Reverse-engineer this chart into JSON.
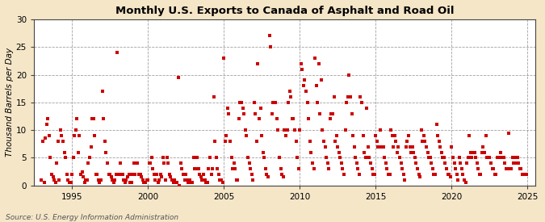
{
  "title": "Monthly U.S. Exports to Canada of Asphalt and Road Oil",
  "ylabel": "Thousand Barrels per Day",
  "source": "Source: U.S. Energy Information Administration",
  "bg_color": "#f5e6c8",
  "plot_bg_color": "#ffffff",
  "dot_color": "#cc0000",
  "dot_size": 5,
  "xlim": [
    1992.5,
    2025.5
  ],
  "ylim": [
    0,
    30
  ],
  "yticks": [
    0,
    5,
    10,
    15,
    20,
    25,
    30
  ],
  "xticks": [
    1995,
    2000,
    2005,
    2010,
    2015,
    2020,
    2025
  ],
  "data": [
    [
      1993.0,
      1.0
    ],
    [
      1993.08,
      8.0
    ],
    [
      1993.17,
      0.5
    ],
    [
      1993.25,
      8.5
    ],
    [
      1993.33,
      11.0
    ],
    [
      1993.42,
      12.0
    ],
    [
      1993.5,
      9.0
    ],
    [
      1993.58,
      5.0
    ],
    [
      1993.67,
      2.0
    ],
    [
      1993.75,
      1.5
    ],
    [
      1993.83,
      1.0
    ],
    [
      1993.92,
      0.5
    ],
    [
      1994.0,
      4.0
    ],
    [
      1994.08,
      8.0
    ],
    [
      1994.17,
      1.0
    ],
    [
      1994.25,
      10.0
    ],
    [
      1994.33,
      9.0
    ],
    [
      1994.42,
      8.0
    ],
    [
      1994.5,
      6.0
    ],
    [
      1994.58,
      5.0
    ],
    [
      1994.67,
      2.0
    ],
    [
      1994.75,
      1.0
    ],
    [
      1994.83,
      0.5
    ],
    [
      1994.92,
      0.5
    ],
    [
      1995.0,
      2.0
    ],
    [
      1995.08,
      5.0
    ],
    [
      1995.17,
      9.0
    ],
    [
      1995.25,
      10.0
    ],
    [
      1995.33,
      12.0
    ],
    [
      1995.42,
      6.0
    ],
    [
      1995.5,
      9.0
    ],
    [
      1995.58,
      2.0
    ],
    [
      1995.67,
      2.5
    ],
    [
      1995.75,
      1.5
    ],
    [
      1995.83,
      0.5
    ],
    [
      1995.92,
      1.0
    ],
    [
      1996.0,
      1.0
    ],
    [
      1996.08,
      4.0
    ],
    [
      1996.17,
      5.0
    ],
    [
      1996.25,
      7.0
    ],
    [
      1996.33,
      12.0
    ],
    [
      1996.42,
      12.0
    ],
    [
      1996.5,
      9.0
    ],
    [
      1996.58,
      2.0
    ],
    [
      1996.67,
      2.0
    ],
    [
      1996.75,
      1.0
    ],
    [
      1996.83,
      0.5
    ],
    [
      1996.92,
      1.0
    ],
    [
      1997.0,
      17.0
    ],
    [
      1997.08,
      12.0
    ],
    [
      1997.17,
      8.0
    ],
    [
      1997.25,
      6.0
    ],
    [
      1997.33,
      4.0
    ],
    [
      1997.42,
      2.0
    ],
    [
      1997.5,
      2.0
    ],
    [
      1997.58,
      1.5
    ],
    [
      1997.67,
      1.0
    ],
    [
      1997.75,
      0.5
    ],
    [
      1997.83,
      1.0
    ],
    [
      1997.92,
      2.0
    ],
    [
      1998.0,
      24.0
    ],
    [
      1998.08,
      2.0
    ],
    [
      1998.17,
      4.0
    ],
    [
      1998.25,
      2.0
    ],
    [
      1998.33,
      2.0
    ],
    [
      1998.42,
      1.0
    ],
    [
      1998.5,
      0.5
    ],
    [
      1998.58,
      1.0
    ],
    [
      1998.67,
      1.5
    ],
    [
      1998.75,
      2.0
    ],
    [
      1998.83,
      0.5
    ],
    [
      1998.92,
      0.5
    ],
    [
      1999.0,
      2.0
    ],
    [
      1999.08,
      4.0
    ],
    [
      1999.17,
      2.0
    ],
    [
      1999.25,
      4.0
    ],
    [
      1999.33,
      4.0
    ],
    [
      1999.42,
      2.0
    ],
    [
      1999.5,
      2.0
    ],
    [
      1999.58,
      1.5
    ],
    [
      1999.67,
      1.0
    ],
    [
      1999.75,
      0.5
    ],
    [
      1999.83,
      0.5
    ],
    [
      1999.92,
      1.0
    ],
    [
      2000.0,
      1.0
    ],
    [
      2000.08,
      4.0
    ],
    [
      2000.17,
      4.0
    ],
    [
      2000.25,
      5.0
    ],
    [
      2000.33,
      3.0
    ],
    [
      2000.42,
      2.0
    ],
    [
      2000.5,
      1.0
    ],
    [
      2000.58,
      2.0
    ],
    [
      2000.67,
      0.5
    ],
    [
      2000.75,
      1.0
    ],
    [
      2000.83,
      2.0
    ],
    [
      2000.92,
      1.5
    ],
    [
      2001.0,
      5.0
    ],
    [
      2001.08,
      4.0
    ],
    [
      2001.17,
      1.0
    ],
    [
      2001.25,
      5.0
    ],
    [
      2001.33,
      4.0
    ],
    [
      2001.42,
      2.0
    ],
    [
      2001.5,
      1.5
    ],
    [
      2001.58,
      1.0
    ],
    [
      2001.67,
      0.5
    ],
    [
      2001.75,
      1.0
    ],
    [
      2001.83,
      0.5
    ],
    [
      2001.92,
      0.5
    ],
    [
      2002.0,
      19.5
    ],
    [
      2002.08,
      0.0
    ],
    [
      2002.17,
      4.0
    ],
    [
      2002.25,
      3.0
    ],
    [
      2002.33,
      2.0
    ],
    [
      2002.42,
      1.0
    ],
    [
      2002.5,
      2.0
    ],
    [
      2002.58,
      1.0
    ],
    [
      2002.67,
      0.5
    ],
    [
      2002.75,
      1.0
    ],
    [
      2002.83,
      0.5
    ],
    [
      2002.92,
      0.5
    ],
    [
      2003.0,
      5.0
    ],
    [
      2003.08,
      3.0
    ],
    [
      2003.17,
      3.0
    ],
    [
      2003.25,
      5.0
    ],
    [
      2003.33,
      3.0
    ],
    [
      2003.42,
      2.0
    ],
    [
      2003.5,
      1.5
    ],
    [
      2003.58,
      1.0
    ],
    [
      2003.67,
      2.0
    ],
    [
      2003.75,
      1.0
    ],
    [
      2003.83,
      0.5
    ],
    [
      2003.92,
      0.5
    ],
    [
      2004.0,
      3.0
    ],
    [
      2004.08,
      5.0
    ],
    [
      2004.17,
      2.0
    ],
    [
      2004.25,
      3.0
    ],
    [
      2004.33,
      16.0
    ],
    [
      2004.42,
      8.0
    ],
    [
      2004.5,
      5.0
    ],
    [
      2004.58,
      3.0
    ],
    [
      2004.67,
      2.0
    ],
    [
      2004.75,
      1.0
    ],
    [
      2004.83,
      1.0
    ],
    [
      2004.92,
      0.5
    ],
    [
      2005.0,
      23.0
    ],
    [
      2005.08,
      8.0
    ],
    [
      2005.17,
      9.0
    ],
    [
      2005.25,
      14.0
    ],
    [
      2005.33,
      13.0
    ],
    [
      2005.42,
      8.0
    ],
    [
      2005.5,
      5.0
    ],
    [
      2005.58,
      3.0
    ],
    [
      2005.67,
      4.0
    ],
    [
      2005.75,
      3.0
    ],
    [
      2005.83,
      1.0
    ],
    [
      2005.92,
      1.0
    ],
    [
      2006.0,
      12.0
    ],
    [
      2006.08,
      15.0
    ],
    [
      2006.17,
      15.0
    ],
    [
      2006.25,
      14.0
    ],
    [
      2006.33,
      13.0
    ],
    [
      2006.42,
      10.0
    ],
    [
      2006.5,
      9.0
    ],
    [
      2006.58,
      5.0
    ],
    [
      2006.67,
      4.0
    ],
    [
      2006.75,
      3.0
    ],
    [
      2006.83,
      2.0
    ],
    [
      2006.92,
      1.0
    ],
    [
      2007.0,
      15.0
    ],
    [
      2007.08,
      13.0
    ],
    [
      2007.17,
      8.0
    ],
    [
      2007.25,
      22.0
    ],
    [
      2007.33,
      12.0
    ],
    [
      2007.42,
      14.0
    ],
    [
      2007.5,
      9.0
    ],
    [
      2007.58,
      6.0
    ],
    [
      2007.67,
      5.0
    ],
    [
      2007.75,
      3.0
    ],
    [
      2007.83,
      2.0
    ],
    [
      2007.92,
      1.5
    ],
    [
      2008.0,
      27.0
    ],
    [
      2008.08,
      25.0
    ],
    [
      2008.17,
      13.0
    ],
    [
      2008.25,
      15.0
    ],
    [
      2008.33,
      15.0
    ],
    [
      2008.42,
      15.0
    ],
    [
      2008.5,
      12.0
    ],
    [
      2008.58,
      10.0
    ],
    [
      2008.67,
      5.0
    ],
    [
      2008.75,
      3.0
    ],
    [
      2008.83,
      2.0
    ],
    [
      2008.92,
      1.5
    ],
    [
      2009.0,
      10.0
    ],
    [
      2009.08,
      9.0
    ],
    [
      2009.17,
      10.0
    ],
    [
      2009.25,
      15.0
    ],
    [
      2009.33,
      17.0
    ],
    [
      2009.42,
      16.0
    ],
    [
      2009.5,
      12.0
    ],
    [
      2009.58,
      12.0
    ],
    [
      2009.67,
      10.0
    ],
    [
      2009.75,
      8.0
    ],
    [
      2009.83,
      5.0
    ],
    [
      2009.92,
      3.0
    ],
    [
      2010.0,
      10.0
    ],
    [
      2010.08,
      22.0
    ],
    [
      2010.17,
      21.0
    ],
    [
      2010.25,
      18.0
    ],
    [
      2010.33,
      19.0
    ],
    [
      2010.42,
      17.0
    ],
    [
      2010.5,
      15.0
    ],
    [
      2010.58,
      12.0
    ],
    [
      2010.67,
      8.0
    ],
    [
      2010.75,
      6.0
    ],
    [
      2010.83,
      4.0
    ],
    [
      2010.92,
      3.0
    ],
    [
      2011.0,
      23.0
    ],
    [
      2011.08,
      18.0
    ],
    [
      2011.17,
      15.0
    ],
    [
      2011.25,
      22.0
    ],
    [
      2011.33,
      13.0
    ],
    [
      2011.42,
      19.0
    ],
    [
      2011.5,
      10.0
    ],
    [
      2011.58,
      8.0
    ],
    [
      2011.67,
      7.0
    ],
    [
      2011.75,
      5.0
    ],
    [
      2011.83,
      4.0
    ],
    [
      2011.92,
      3.0
    ],
    [
      2012.0,
      12.0
    ],
    [
      2012.08,
      13.0
    ],
    [
      2012.17,
      13.0
    ],
    [
      2012.25,
      16.0
    ],
    [
      2012.33,
      8.0
    ],
    [
      2012.42,
      9.0
    ],
    [
      2012.5,
      7.0
    ],
    [
      2012.58,
      6.0
    ],
    [
      2012.67,
      5.0
    ],
    [
      2012.75,
      4.0
    ],
    [
      2012.83,
      3.0
    ],
    [
      2012.92,
      2.0
    ],
    [
      2013.0,
      10.0
    ],
    [
      2013.08,
      15.0
    ],
    [
      2013.17,
      16.0
    ],
    [
      2013.25,
      20.0
    ],
    [
      2013.33,
      16.0
    ],
    [
      2013.42,
      13.0
    ],
    [
      2013.5,
      9.0
    ],
    [
      2013.58,
      7.0
    ],
    [
      2013.67,
      5.0
    ],
    [
      2013.75,
      4.0
    ],
    [
      2013.83,
      3.0
    ],
    [
      2013.92,
      2.0
    ],
    [
      2014.0,
      16.0
    ],
    [
      2014.08,
      15.0
    ],
    [
      2014.17,
      9.0
    ],
    [
      2014.25,
      6.0
    ],
    [
      2014.33,
      5.0
    ],
    [
      2014.42,
      14.0
    ],
    [
      2014.5,
      7.0
    ],
    [
      2014.58,
      5.0
    ],
    [
      2014.67,
      4.0
    ],
    [
      2014.75,
      3.0
    ],
    [
      2014.83,
      2.0
    ],
    [
      2014.92,
      2.0
    ],
    [
      2015.0,
      9.0
    ],
    [
      2015.08,
      8.0
    ],
    [
      2015.17,
      7.0
    ],
    [
      2015.25,
      7.0
    ],
    [
      2015.33,
      10.0
    ],
    [
      2015.42,
      7.0
    ],
    [
      2015.5,
      7.0
    ],
    [
      2015.58,
      5.0
    ],
    [
      2015.67,
      4.0
    ],
    [
      2015.75,
      3.0
    ],
    [
      2015.83,
      2.0
    ],
    [
      2015.92,
      2.0
    ],
    [
      2016.0,
      10.0
    ],
    [
      2016.08,
      9.0
    ],
    [
      2016.17,
      7.0
    ],
    [
      2016.25,
      9.0
    ],
    [
      2016.33,
      8.0
    ],
    [
      2016.42,
      6.0
    ],
    [
      2016.5,
      7.0
    ],
    [
      2016.58,
      5.0
    ],
    [
      2016.67,
      4.0
    ],
    [
      2016.75,
      3.0
    ],
    [
      2016.83,
      2.0
    ],
    [
      2016.92,
      1.0
    ],
    [
      2017.0,
      7.0
    ],
    [
      2017.08,
      8.0
    ],
    [
      2017.17,
      9.0
    ],
    [
      2017.25,
      7.0
    ],
    [
      2017.33,
      6.0
    ],
    [
      2017.42,
      7.0
    ],
    [
      2017.5,
      6.0
    ],
    [
      2017.58,
      5.0
    ],
    [
      2017.67,
      4.0
    ],
    [
      2017.75,
      3.0
    ],
    [
      2017.83,
      2.0
    ],
    [
      2017.92,
      1.5
    ],
    [
      2018.0,
      10.0
    ],
    [
      2018.08,
      8.0
    ],
    [
      2018.17,
      9.0
    ],
    [
      2018.25,
      8.0
    ],
    [
      2018.33,
      7.0
    ],
    [
      2018.42,
      6.0
    ],
    [
      2018.5,
      5.0
    ],
    [
      2018.58,
      5.0
    ],
    [
      2018.67,
      4.0
    ],
    [
      2018.75,
      3.0
    ],
    [
      2018.83,
      2.0
    ],
    [
      2018.92,
      2.0
    ],
    [
      2019.0,
      11.0
    ],
    [
      2019.08,
      9.0
    ],
    [
      2019.17,
      8.0
    ],
    [
      2019.25,
      7.0
    ],
    [
      2019.33,
      6.0
    ],
    [
      2019.42,
      5.0
    ],
    [
      2019.5,
      5.0
    ],
    [
      2019.58,
      4.0
    ],
    [
      2019.67,
      3.0
    ],
    [
      2019.75,
      2.0
    ],
    [
      2019.83,
      2.0
    ],
    [
      2019.92,
      1.5
    ],
    [
      2020.0,
      7.0
    ],
    [
      2020.08,
      5.0
    ],
    [
      2020.17,
      4.0
    ],
    [
      2020.25,
      3.0
    ],
    [
      2020.33,
      2.0
    ],
    [
      2020.42,
      1.0
    ],
    [
      2020.5,
      5.0
    ],
    [
      2020.58,
      4.0
    ],
    [
      2020.67,
      3.0
    ],
    [
      2020.75,
      2.0
    ],
    [
      2020.83,
      1.0
    ],
    [
      2020.92,
      0.5
    ],
    [
      2021.0,
      4.0
    ],
    [
      2021.08,
      5.0
    ],
    [
      2021.17,
      9.0
    ],
    [
      2021.25,
      6.0
    ],
    [
      2021.33,
      5.0
    ],
    [
      2021.42,
      6.0
    ],
    [
      2021.5,
      6.0
    ],
    [
      2021.58,
      5.0
    ],
    [
      2021.67,
      4.0
    ],
    [
      2021.75,
      3.0
    ],
    [
      2021.83,
      2.0
    ],
    [
      2021.92,
      2.0
    ],
    [
      2022.0,
      6.0
    ],
    [
      2022.08,
      7.0
    ],
    [
      2022.17,
      6.0
    ],
    [
      2022.25,
      9.0
    ],
    [
      2022.33,
      5.0
    ],
    [
      2022.42,
      5.0
    ],
    [
      2022.5,
      5.0
    ],
    [
      2022.58,
      4.0
    ],
    [
      2022.67,
      3.0
    ],
    [
      2022.75,
      3.0
    ],
    [
      2022.83,
      2.0
    ],
    [
      2022.92,
      2.0
    ],
    [
      2023.0,
      5.0
    ],
    [
      2023.08,
      5.0
    ],
    [
      2023.17,
      5.0
    ],
    [
      2023.25,
      6.0
    ],
    [
      2023.33,
      5.0
    ],
    [
      2023.42,
      5.0
    ],
    [
      2023.5,
      4.0
    ],
    [
      2023.58,
      3.0
    ],
    [
      2023.67,
      3.0
    ],
    [
      2023.75,
      9.5
    ],
    [
      2023.83,
      3.0
    ],
    [
      2023.92,
      3.0
    ],
    [
      2024.0,
      5.0
    ],
    [
      2024.08,
      4.0
    ],
    [
      2024.17,
      4.0
    ],
    [
      2024.25,
      5.0
    ],
    [
      2024.33,
      5.0
    ],
    [
      2024.42,
      4.0
    ],
    [
      2024.5,
      3.0
    ],
    [
      2024.58,
      3.0
    ],
    [
      2024.67,
      2.0
    ],
    [
      2024.75,
      2.0
    ],
    [
      2024.83,
      2.0
    ],
    [
      2024.92,
      2.0
    ]
  ]
}
